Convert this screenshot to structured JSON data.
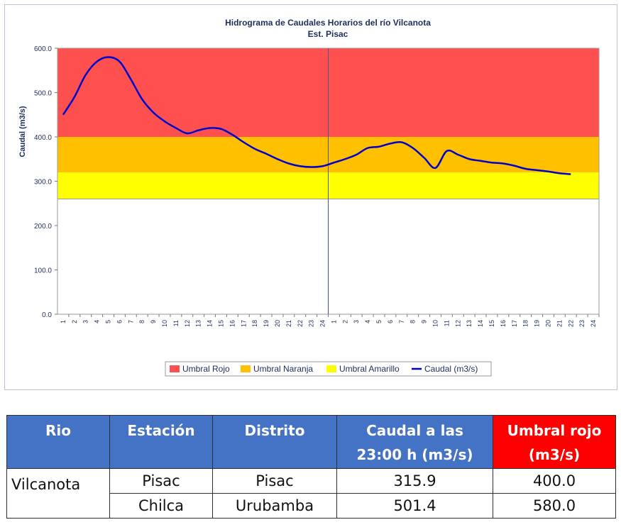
{
  "chart_data": {
    "type": "line",
    "title": "Hidrograma de Caudales Horarios del río Vilcanota",
    "subtitle": "Est. Pisac",
    "ylabel": "Caudal (m3/s)",
    "xlabel": "",
    "ylim": [
      0,
      600
    ],
    "yticks": [
      "0.0",
      "100.0",
      "200.0",
      "300.0",
      "400.0",
      "500.0",
      "600.0"
    ],
    "x_tick_labels": [
      "1",
      "2",
      "3",
      "4",
      "5",
      "6",
      "7",
      "8",
      "9",
      "10",
      "11",
      "12",
      "13",
      "14",
      "15",
      "16",
      "17",
      "18",
      "19",
      "20",
      "21",
      "22",
      "23",
      "24",
      "1",
      "2",
      "3",
      "4",
      "5",
      "6",
      "7",
      "8",
      "9",
      "10",
      "11",
      "12",
      "13",
      "14",
      "15",
      "16",
      "17",
      "18",
      "19",
      "20",
      "21",
      "22",
      "23",
      "24"
    ],
    "bands": [
      {
        "name": "Umbral Rojo",
        "from": 400,
        "to": 600,
        "color": "#ff5050"
      },
      {
        "name": "Umbral Naranja",
        "from": 320,
        "to": 400,
        "color": "#ffc000"
      },
      {
        "name": "Umbral Amarillo",
        "from": 260,
        "to": 320,
        "color": "#ffff00"
      }
    ],
    "series": [
      {
        "name": "Caudal (m3/s)",
        "color": "#0000cc",
        "values": [
          450,
          490,
          540,
          570,
          580,
          570,
          530,
          485,
          455,
          435,
          420,
          408,
          415,
          420,
          418,
          405,
          388,
          373,
          362,
          350,
          340,
          334,
          332,
          334,
          342,
          350,
          360,
          375,
          378,
          385,
          388,
          375,
          353,
          330,
          368,
          360,
          350,
          346,
          342,
          340,
          335,
          328,
          325,
          322,
          318,
          315.9
        ]
      }
    ],
    "legend": [
      "Umbral Rojo",
      "Umbral Naranja",
      "Umbral Amarillo",
      "Caudal (m3/s)"
    ],
    "legend_position": "bottom",
    "grid": false
  },
  "table": {
    "headers": {
      "rio": "Rio",
      "estacion": "Estación",
      "distrito": "Distrito",
      "caudal_line1": "Caudal a las",
      "caudal_line2": "23:00 h (m3/s)",
      "umbral_line1": "Umbral rojo",
      "umbral_line2": "(m3/s)"
    },
    "rio": "Vilcanota",
    "rows": [
      {
        "estacion": "Pisac",
        "distrito": "Pisac",
        "caudal": "315.9",
        "umbral": "400.0"
      },
      {
        "estacion": "Chilca",
        "distrito": "Urubamba",
        "caudal": "501.4",
        "umbral": "580.0"
      }
    ]
  },
  "colors": {
    "header_blue": "#4472c4",
    "header_red": "#ff0000"
  }
}
